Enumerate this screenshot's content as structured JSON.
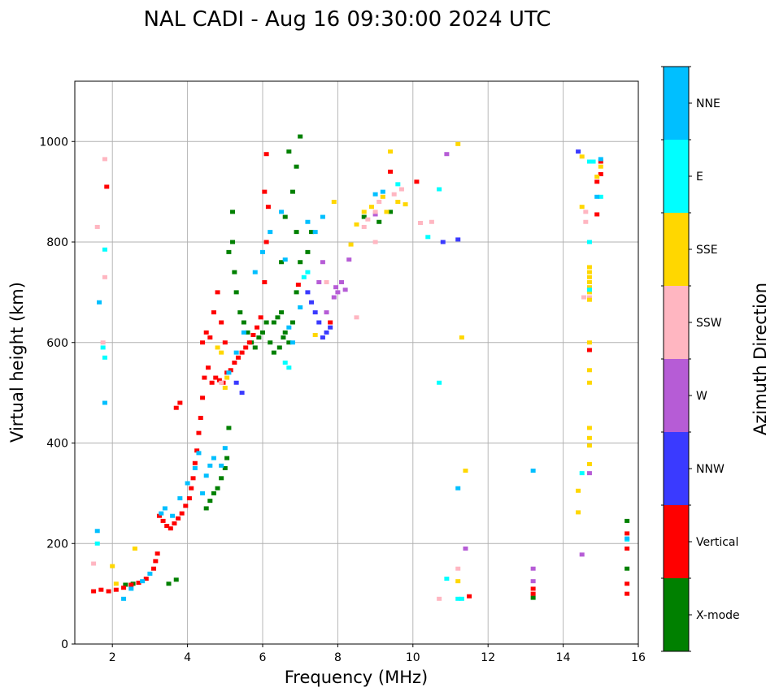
{
  "chart_data": {
    "type": "scatter",
    "title": "NAL CADI - Aug 16 09:30:00 2024 UTC",
    "xlabel": "Frequency (MHz)",
    "ylabel": "Virtual height (km)",
    "xlim": [
      1,
      16
    ],
    "ylim": [
      0,
      1120
    ],
    "xticks": [
      2,
      4,
      6,
      8,
      10,
      12,
      14,
      16
    ],
    "yticks": [
      0,
      200,
      400,
      600,
      800,
      1000
    ],
    "grid": true,
    "marker": "rectangle",
    "colorbar": {
      "label": "Azimuth Direction",
      "placement": "right",
      "categories": [
        {
          "name": "X-mode",
          "color": "#008000"
        },
        {
          "name": "Vertical",
          "color": "#ff0000"
        },
        {
          "name": "NNW",
          "color": "#3a3aff"
        },
        {
          "name": "W",
          "color": "#b65cd6"
        },
        {
          "name": "SSW",
          "color": "#ffb6c1"
        },
        {
          "name": "SSE",
          "color": "#ffd700"
        },
        {
          "name": "E",
          "color": "#00ffff"
        },
        {
          "name": "NNE",
          "color": "#00bfff"
        }
      ]
    },
    "series": [
      {
        "name": "X-mode",
        "points": [
          [
            2.35,
            118
          ],
          [
            2.55,
            120
          ],
          [
            3.7,
            128
          ],
          [
            3.5,
            120
          ],
          [
            4.5,
            270
          ],
          [
            4.6,
            285
          ],
          [
            4.7,
            300
          ],
          [
            4.8,
            310
          ],
          [
            4.9,
            330
          ],
          [
            5.0,
            350
          ],
          [
            5.05,
            370
          ],
          [
            5.1,
            430
          ],
          [
            5.2,
            800
          ],
          [
            5.25,
            740
          ],
          [
            5.3,
            700
          ],
          [
            5.4,
            660
          ],
          [
            5.5,
            640
          ],
          [
            5.6,
            620
          ],
          [
            5.7,
            600
          ],
          [
            5.8,
            590
          ],
          [
            5.9,
            610
          ],
          [
            6.0,
            620
          ],
          [
            6.1,
            640
          ],
          [
            6.2,
            600
          ],
          [
            6.3,
            580
          ],
          [
            6.4,
            650
          ],
          [
            6.5,
            660
          ],
          [
            6.6,
            620
          ],
          [
            6.7,
            600
          ],
          [
            6.8,
            640
          ],
          [
            6.9,
            700
          ],
          [
            7.0,
            760
          ],
          [
            6.8,
            900
          ],
          [
            6.9,
            950
          ],
          [
            7.0,
            1010
          ],
          [
            7.2,
            780
          ],
          [
            7.3,
            820
          ],
          [
            6.7,
            980
          ],
          [
            6.6,
            850
          ],
          [
            6.5,
            760
          ],
          [
            6.9,
            820
          ],
          [
            5.2,
            860
          ],
          [
            5.1,
            780
          ],
          [
            6.3,
            640
          ],
          [
            6.45,
            590
          ],
          [
            6.55,
            610
          ],
          [
            8.7,
            850
          ],
          [
            9.1,
            840
          ],
          [
            9.4,
            860
          ],
          [
            15.7,
            245
          ],
          [
            15.7,
            150
          ],
          [
            13.2,
            92
          ]
        ]
      },
      {
        "name": "Vertical",
        "points": [
          [
            1.5,
            105
          ],
          [
            1.7,
            108
          ],
          [
            1.9,
            105
          ],
          [
            2.1,
            108
          ],
          [
            2.3,
            112
          ],
          [
            2.5,
            118
          ],
          [
            2.7,
            122
          ],
          [
            2.9,
            130
          ],
          [
            3.1,
            150
          ],
          [
            3.15,
            165
          ],
          [
            3.2,
            180
          ],
          [
            3.25,
            255
          ],
          [
            3.35,
            245
          ],
          [
            3.45,
            235
          ],
          [
            3.55,
            230
          ],
          [
            3.65,
            240
          ],
          [
            3.75,
            250
          ],
          [
            3.85,
            260
          ],
          [
            3.95,
            275
          ],
          [
            4.05,
            290
          ],
          [
            4.1,
            310
          ],
          [
            4.15,
            330
          ],
          [
            4.2,
            360
          ],
          [
            4.25,
            385
          ],
          [
            4.3,
            420
          ],
          [
            4.35,
            450
          ],
          [
            4.4,
            490
          ],
          [
            4.45,
            530
          ],
          [
            4.55,
            550
          ],
          [
            4.65,
            520
          ],
          [
            4.75,
            530
          ],
          [
            4.85,
            525
          ],
          [
            4.95,
            520
          ],
          [
            5.05,
            540
          ],
          [
            5.15,
            545
          ],
          [
            5.25,
            560
          ],
          [
            5.35,
            570
          ],
          [
            5.45,
            580
          ],
          [
            5.55,
            590
          ],
          [
            5.65,
            600
          ],
          [
            5.75,
            615
          ],
          [
            5.85,
            630
          ],
          [
            5.95,
            650
          ],
          [
            6.05,
            720
          ],
          [
            6.1,
            800
          ],
          [
            6.15,
            870
          ],
          [
            6.1,
            975
          ],
          [
            6.05,
            900
          ],
          [
            4.4,
            600
          ],
          [
            4.5,
            620
          ],
          [
            4.6,
            610
          ],
          [
            4.7,
            660
          ],
          [
            4.8,
            700
          ],
          [
            4.9,
            640
          ],
          [
            5.0,
            600
          ],
          [
            3.7,
            470
          ],
          [
            3.8,
            480
          ],
          [
            1.85,
            910
          ],
          [
            15.0,
            960
          ],
          [
            15.0,
            935
          ],
          [
            14.9,
            920
          ],
          [
            14.9,
            855
          ],
          [
            14.7,
            585
          ],
          [
            13.2,
            100
          ],
          [
            13.2,
            110
          ],
          [
            15.7,
            220
          ],
          [
            15.7,
            190
          ],
          [
            15.7,
            120
          ],
          [
            15.7,
            100
          ],
          [
            11.5,
            95
          ],
          [
            9.4,
            940
          ],
          [
            10.1,
            920
          ],
          [
            7.8,
            640
          ],
          [
            6.95,
            715
          ]
        ]
      },
      {
        "name": "NNW",
        "points": [
          [
            5.45,
            500
          ],
          [
            5.3,
            520
          ],
          [
            7.6,
            610
          ],
          [
            7.7,
            620
          ],
          [
            7.5,
            640
          ],
          [
            7.8,
            630
          ],
          [
            7.4,
            660
          ],
          [
            7.3,
            680
          ],
          [
            7.2,
            700
          ],
          [
            14.4,
            980
          ],
          [
            10.8,
            800
          ],
          [
            11.2,
            805
          ]
        ]
      },
      {
        "name": "W",
        "points": [
          [
            8.0,
            700
          ],
          [
            8.1,
            720
          ],
          [
            8.2,
            705
          ],
          [
            7.9,
            690
          ],
          [
            7.7,
            660
          ],
          [
            8.3,
            765
          ],
          [
            7.95,
            710
          ],
          [
            7.6,
            760
          ],
          [
            14.5,
            178
          ],
          [
            14.7,
            340
          ],
          [
            13.2,
            150
          ],
          [
            13.2,
            125
          ],
          [
            11.4,
            190
          ],
          [
            10.9,
            975
          ],
          [
            9.0,
            855
          ],
          [
            7.5,
            720
          ]
        ]
      },
      {
        "name": "SSW",
        "points": [
          [
            1.5,
            160
          ],
          [
            1.6,
            830
          ],
          [
            1.8,
            965
          ],
          [
            1.8,
            730
          ],
          [
            1.75,
            600
          ],
          [
            8.7,
            830
          ],
          [
            8.8,
            845
          ],
          [
            9.0,
            860
          ],
          [
            9.1,
            880
          ],
          [
            9.5,
            895
          ],
          [
            9.7,
            905
          ],
          [
            9.0,
            800
          ],
          [
            8.5,
            650
          ],
          [
            10.2,
            838
          ],
          [
            10.5,
            840
          ],
          [
            10.7,
            90
          ],
          [
            11.2,
            150
          ],
          [
            14.6,
            840
          ],
          [
            14.6,
            860
          ],
          [
            14.55,
            690
          ],
          [
            14.7,
            690
          ],
          [
            4.9,
            520
          ],
          [
            7.7,
            720
          ]
        ]
      },
      {
        "name": "SSE",
        "points": [
          [
            2.0,
            155
          ],
          [
            2.6,
            190
          ],
          [
            2.1,
            120
          ],
          [
            4.8,
            590
          ],
          [
            4.9,
            580
          ],
          [
            5.0,
            510
          ],
          [
            5.05,
            530
          ],
          [
            8.5,
            835
          ],
          [
            8.7,
            860
          ],
          [
            8.9,
            870
          ],
          [
            9.2,
            890
          ],
          [
            9.4,
            980
          ],
          [
            9.6,
            880
          ],
          [
            9.8,
            875
          ],
          [
            9.3,
            860
          ],
          [
            11.2,
            125
          ],
          [
            11.3,
            610
          ],
          [
            11.4,
            345
          ],
          [
            11.2,
            995
          ],
          [
            14.5,
            970
          ],
          [
            14.5,
            870
          ],
          [
            14.4,
            305
          ],
          [
            14.4,
            262
          ],
          [
            14.7,
            750
          ],
          [
            14.7,
            740
          ],
          [
            14.7,
            730
          ],
          [
            14.7,
            720
          ],
          [
            14.7,
            710
          ],
          [
            14.7,
            700
          ],
          [
            14.7,
            685
          ],
          [
            14.7,
            600
          ],
          [
            14.7,
            545
          ],
          [
            14.7,
            520
          ],
          [
            14.7,
            430
          ],
          [
            14.7,
            410
          ],
          [
            14.7,
            395
          ],
          [
            14.7,
            358
          ],
          [
            14.9,
            930
          ],
          [
            15.0,
            950
          ],
          [
            8.35,
            795
          ],
          [
            7.9,
            880
          ],
          [
            7.4,
            615
          ]
        ]
      },
      {
        "name": "E",
        "points": [
          [
            1.6,
            200
          ],
          [
            1.8,
            785
          ],
          [
            1.8,
            570
          ],
          [
            1.75,
            590
          ],
          [
            6.6,
            560
          ],
          [
            6.7,
            550
          ],
          [
            7.2,
            740
          ],
          [
            7.1,
            730
          ],
          [
            9.6,
            915
          ],
          [
            10.7,
            520
          ],
          [
            10.7,
            905
          ],
          [
            10.4,
            810
          ],
          [
            10.9,
            130
          ],
          [
            11.2,
            90
          ],
          [
            11.3,
            90
          ],
          [
            14.7,
            960
          ],
          [
            14.8,
            960
          ],
          [
            14.7,
            800
          ],
          [
            14.7,
            705
          ],
          [
            15.7,
            208
          ],
          [
            15.0,
            890
          ],
          [
            14.5,
            340
          ]
        ]
      },
      {
        "name": "NNE",
        "points": [
          [
            1.6,
            225
          ],
          [
            1.8,
            480
          ],
          [
            1.65,
            680
          ],
          [
            2.3,
            90
          ],
          [
            2.5,
            110
          ],
          [
            2.8,
            125
          ],
          [
            3.0,
            140
          ],
          [
            3.3,
            260
          ],
          [
            3.4,
            270
          ],
          [
            3.6,
            255
          ],
          [
            3.8,
            290
          ],
          [
            4.0,
            320
          ],
          [
            4.2,
            350
          ],
          [
            4.3,
            380
          ],
          [
            4.4,
            300
          ],
          [
            4.5,
            335
          ],
          [
            4.6,
            355
          ],
          [
            4.7,
            370
          ],
          [
            4.9,
            355
          ],
          [
            5.0,
            390
          ],
          [
            5.1,
            540
          ],
          [
            5.3,
            580
          ],
          [
            5.5,
            620
          ],
          [
            5.8,
            740
          ],
          [
            6.0,
            780
          ],
          [
            6.2,
            820
          ],
          [
            6.5,
            860
          ],
          [
            6.6,
            765
          ],
          [
            6.7,
            630
          ],
          [
            6.8,
            600
          ],
          [
            7.0,
            670
          ],
          [
            7.2,
            840
          ],
          [
            7.4,
            820
          ],
          [
            7.6,
            850
          ],
          [
            9.0,
            895
          ],
          [
            9.2,
            900
          ],
          [
            13.2,
            345
          ],
          [
            11.2,
            310
          ],
          [
            14.9,
            890
          ],
          [
            15.0,
            965
          ],
          [
            15.7,
            210
          ]
        ]
      }
    ]
  }
}
